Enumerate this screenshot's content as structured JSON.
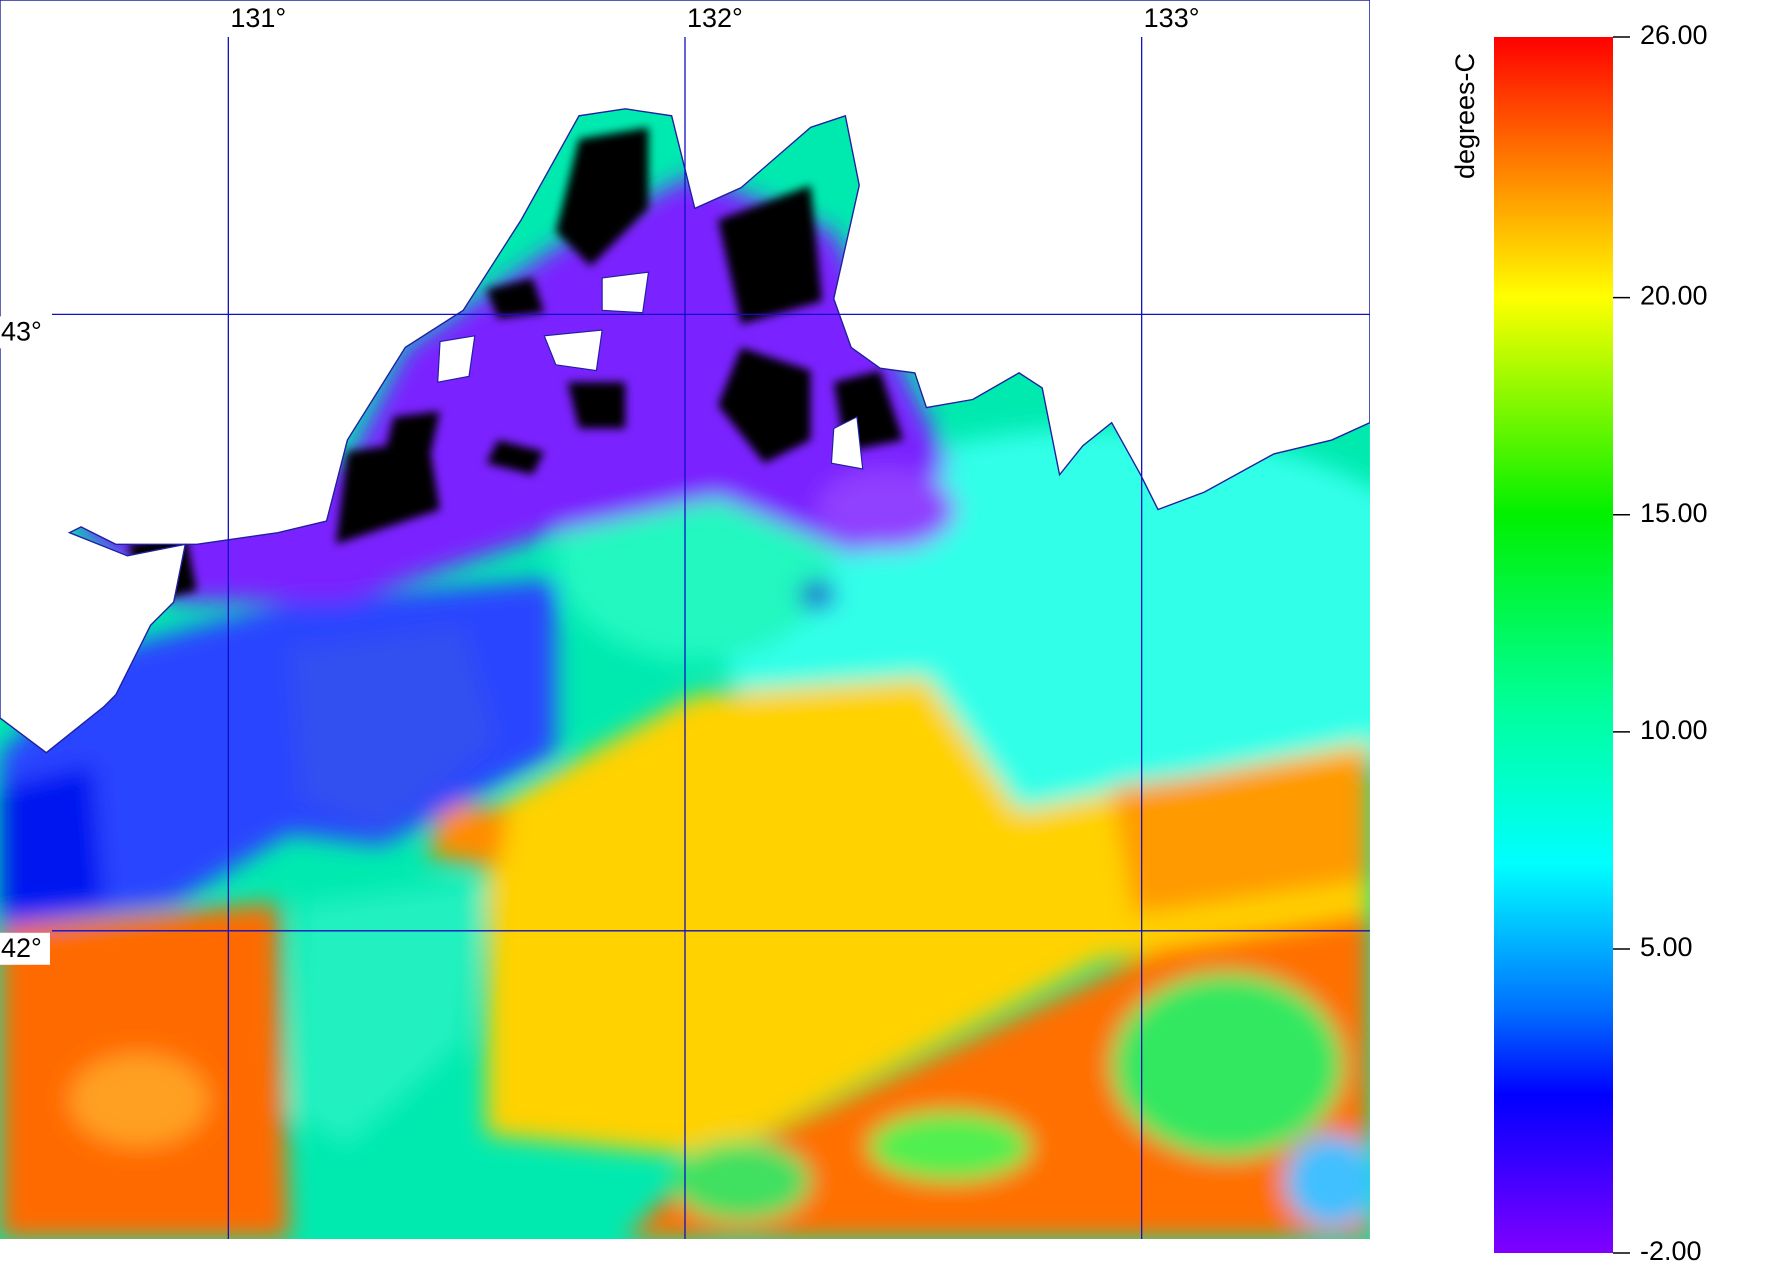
{
  "map": {
    "xlim": [
      130.5,
      133.5
    ],
    "ylim": [
      41.5,
      43.51
    ],
    "lon_ticks": [
      {
        "value": 131,
        "label": "131°"
      },
      {
        "value": 132,
        "label": "132°"
      },
      {
        "value": 133,
        "label": "133°"
      }
    ],
    "lat_ticks": [
      {
        "value": 43,
        "label": "43°"
      },
      {
        "value": 42,
        "label": "42°"
      }
    ]
  },
  "colorbar": {
    "label": "degrees-C",
    "lim": [
      -2,
      26
    ],
    "ticks": [
      {
        "value": 26,
        "label": "26.00"
      },
      {
        "value": 20,
        "label": "20.00"
      },
      {
        "value": 15,
        "label": "15.00"
      },
      {
        "value": 10,
        "label": "10.00"
      },
      {
        "value": 5,
        "label": "5.00"
      },
      {
        "value": -2,
        "label": "-2.00"
      }
    ]
  }
}
